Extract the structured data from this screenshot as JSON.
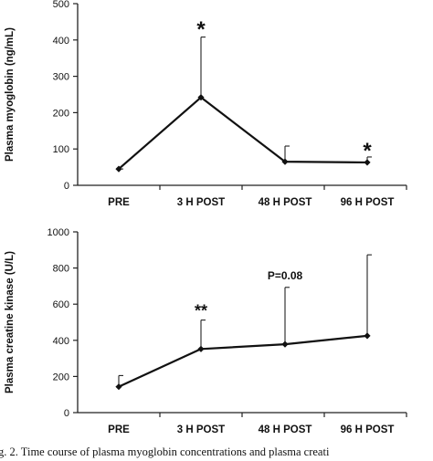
{
  "chart_data": [
    {
      "type": "line",
      "categories": [
        "PRE",
        "3 H POST",
        "48 H POST",
        "96 H POST"
      ],
      "values": [
        45,
        242,
        65,
        63
      ],
      "error_upper": [
        45,
        408,
        108,
        78
      ],
      "ylabel": "Plasma myoglobin (ng/mL)",
      "ylim": [
        0,
        500
      ],
      "yticks": [
        "0",
        "100",
        "200",
        "300",
        "400",
        "500"
      ],
      "annotations": [
        {
          "category": "3 H POST",
          "text": "*"
        },
        {
          "category": "96 H POST",
          "text": "*"
        }
      ],
      "grid": false
    },
    {
      "type": "line",
      "categories": [
        "PRE",
        "3 H POST",
        "48 H POST",
        "96 H POST"
      ],
      "values": [
        143,
        352,
        378,
        425
      ],
      "error_upper": [
        205,
        512,
        693,
        873
      ],
      "ylabel": "Plasma creatine kinase (U/L)",
      "ylim": [
        0,
        1000
      ],
      "yticks": [
        "0",
        "200",
        "400",
        "600",
        "800",
        "1000"
      ],
      "annotations": [
        {
          "category": "3 H POST",
          "text": "**"
        },
        {
          "category": "48 H POST",
          "text": "P=0.08"
        }
      ],
      "grid": false
    }
  ],
  "caption": "g. 2. Time course of plasma myoglobin concentrations and plasma creati"
}
